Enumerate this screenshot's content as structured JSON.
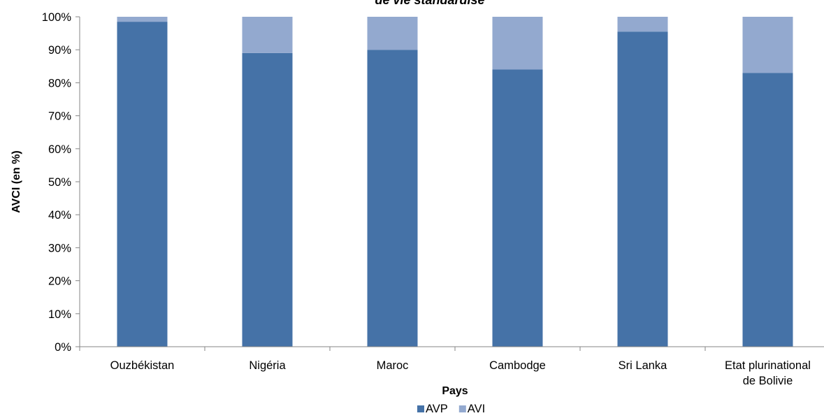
{
  "chart_data": {
    "type": "bar",
    "stacked": true,
    "title": "de vie standardisé",
    "xlabel": "Pays",
    "ylabel": "AVCI (en %)",
    "ylim": [
      0,
      100
    ],
    "yticks": [
      "0%",
      "10%",
      "20%",
      "30%",
      "40%",
      "50%",
      "60%",
      "70%",
      "80%",
      "90%",
      "100%"
    ],
    "categories": [
      [
        "Ouzbékistan"
      ],
      [
        "Nigéria"
      ],
      [
        "Maroc"
      ],
      [
        "Cambodge"
      ],
      [
        "Sri Lanka"
      ],
      [
        "Etat plurinational",
        "de Bolivie"
      ]
    ],
    "series": [
      {
        "name": "AVP",
        "color": "#4572A7",
        "values": [
          98.5,
          89.0,
          90.0,
          84.0,
          95.5,
          83.0
        ]
      },
      {
        "name": "AVI",
        "color": "#93A9CF",
        "values": [
          1.5,
          11.0,
          10.0,
          16.0,
          4.5,
          17.0
        ]
      }
    ],
    "grid": false,
    "legend_position": "bottom"
  }
}
